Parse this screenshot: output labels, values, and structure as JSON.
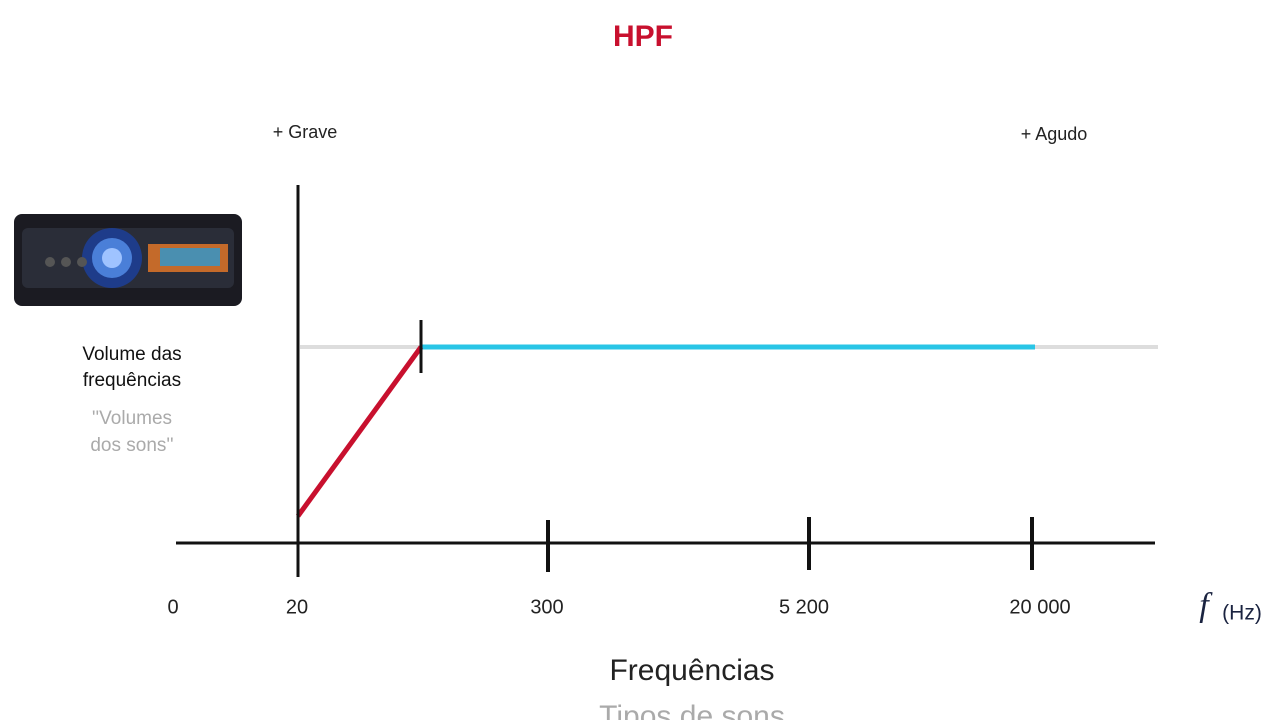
{
  "title": "HPF",
  "left_label": "+ Grave",
  "right_label": "+ Agudo",
  "y_label": [
    "Volume das",
    "frequências"
  ],
  "y_sublabel": [
    "''Volumes",
    "dos sons''"
  ],
  "x_ticks": [
    "0",
    "20",
    "300",
    "5 200",
    "20 000"
  ],
  "unit": {
    "symbol": "f",
    "text": "(Hz)"
  },
  "x_title": "Frequências",
  "x_subtitle": "Tipos de sons"
}
